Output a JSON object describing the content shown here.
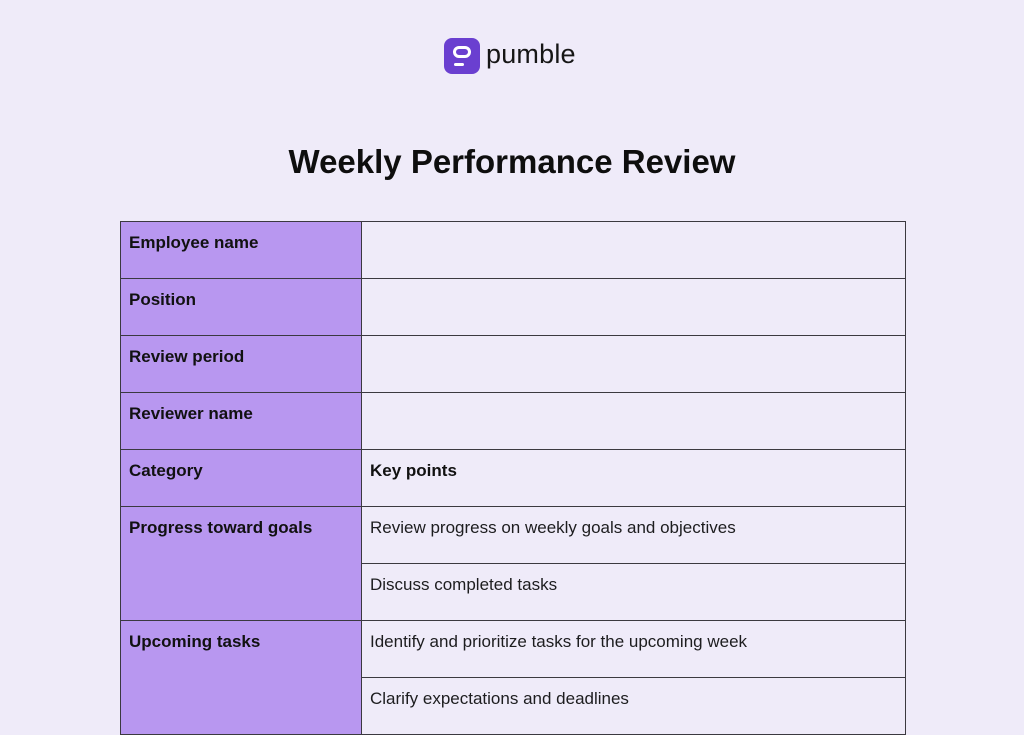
{
  "brand": {
    "name": "pumble",
    "logo_color": "#6a3fd0"
  },
  "document": {
    "title": "Weekly Performance Review"
  },
  "colors": {
    "background": "#efebf9",
    "label_fill": "#b897f0",
    "border": "#3b3940"
  },
  "info_rows": [
    {
      "label": "Employee name",
      "value": ""
    },
    {
      "label": "Position",
      "value": ""
    },
    {
      "label": "Review period",
      "value": ""
    },
    {
      "label": "Reviewer name",
      "value": ""
    }
  ],
  "header_row": {
    "category": "Category",
    "key_points": "Key points"
  },
  "sections": [
    {
      "category": "Progress toward goals",
      "points": [
        "Review progress on weekly goals and objectives",
        "Discuss completed tasks"
      ]
    },
    {
      "category": "Upcoming tasks",
      "points": [
        "Identify and prioritize tasks for the upcoming week",
        "Clarify expectations and deadlines"
      ]
    }
  ]
}
